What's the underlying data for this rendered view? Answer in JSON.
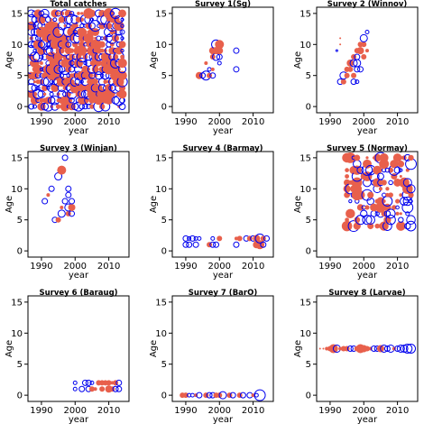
{
  "colors": {
    "positive": "#e8604c",
    "negative": "#0000ee",
    "axis": "#000000"
  },
  "chart_data": [
    {
      "type": "scatter",
      "title": "Total catches",
      "xlabel": "year",
      "ylabel": "Age",
      "xlim": [
        1986,
        2016
      ],
      "ylim": [
        -1,
        16
      ],
      "xticks": [
        1990,
        2000,
        2010
      ],
      "yticks": [
        0,
        5,
        10,
        15
      ],
      "x_range": [
        1987,
        2014
      ],
      "y_range": [
        0,
        15
      ],
      "mode": "dense",
      "density": 0.9
    },
    {
      "type": "scatter",
      "title": "Survey 1(Sg)",
      "xlabel": "year",
      "ylabel": "Age",
      "xlim": [
        1986,
        2016
      ],
      "ylim": [
        -1,
        16
      ],
      "xticks": [
        1990,
        2000,
        2010
      ],
      "yticks": [
        0,
        5,
        10,
        15
      ],
      "points": [
        {
          "x": 1994,
          "y": 5,
          "r": 4,
          "s": "pos"
        },
        {
          "x": 1995,
          "y": 5,
          "r": 3,
          "s": "neg"
        },
        {
          "x": 1996,
          "y": 5,
          "r": 5,
          "s": "neg"
        },
        {
          "x": 1997,
          "y": 5,
          "r": 3,
          "s": "pos"
        },
        {
          "x": 1996,
          "y": 7,
          "r": 2,
          "s": "pos"
        },
        {
          "x": 1997,
          "y": 6,
          "r": 2,
          "s": "neg"
        },
        {
          "x": 1998,
          "y": 5,
          "r": 3,
          "s": "neg"
        },
        {
          "x": 1998,
          "y": 8,
          "r": 3,
          "s": "pos"
        },
        {
          "x": 1998,
          "y": 9,
          "r": 4,
          "s": "pos"
        },
        {
          "x": 1999,
          "y": 10,
          "r": 5,
          "s": "neg"
        },
        {
          "x": 2000,
          "y": 10,
          "r": 5,
          "s": "pos"
        },
        {
          "x": 1999,
          "y": 8,
          "r": 4,
          "s": "neg"
        },
        {
          "x": 2000,
          "y": 8,
          "r": 3,
          "s": "neg"
        },
        {
          "x": 1999,
          "y": 9,
          "r": 4,
          "s": "pos"
        },
        {
          "x": 2000,
          "y": 9,
          "r": 4,
          "s": "pos"
        },
        {
          "x": 2000,
          "y": 7,
          "r": 2,
          "s": "neg"
        },
        {
          "x": 1998,
          "y": 6,
          "r": 2,
          "s": "pos"
        },
        {
          "x": 2005,
          "y": 9,
          "r": 3,
          "s": "neg"
        },
        {
          "x": 2005,
          "y": 6,
          "r": 3,
          "s": "neg"
        }
      ]
    },
    {
      "type": "scatter",
      "title": "Survey 2 (Winnov)",
      "xlabel": "year",
      "ylabel": "Age",
      "xlim": [
        1986,
        2016
      ],
      "ylim": [
        -1,
        16
      ],
      "xticks": [
        1990,
        2000,
        2010
      ],
      "yticks": [
        0,
        5,
        10,
        15
      ],
      "points": [
        {
          "x": 1992,
          "y": 9,
          "r": 1,
          "s": "neg"
        },
        {
          "x": 1993,
          "y": 10,
          "r": 1,
          "s": "pos"
        },
        {
          "x": 1993,
          "y": 11,
          "r": 1,
          "s": "pos"
        },
        {
          "x": 1993,
          "y": 4,
          "r": 3,
          "s": "neg"
        },
        {
          "x": 1994,
          "y": 4,
          "r": 3,
          "s": "pos"
        },
        {
          "x": 1994,
          "y": 5,
          "r": 4,
          "s": "neg"
        },
        {
          "x": 1995,
          "y": 5,
          "r": 3,
          "s": "pos"
        },
        {
          "x": 1995,
          "y": 6,
          "r": 3,
          "s": "pos"
        },
        {
          "x": 1996,
          "y": 6,
          "r": 3,
          "s": "pos"
        },
        {
          "x": 1996,
          "y": 7,
          "r": 4,
          "s": "pos"
        },
        {
          "x": 1997,
          "y": 4,
          "r": 3,
          "s": "neg"
        },
        {
          "x": 1997,
          "y": 5,
          "r": 3,
          "s": "pos"
        },
        {
          "x": 1997,
          "y": 7,
          "r": 4,
          "s": "neg"
        },
        {
          "x": 1997,
          "y": 8,
          "r": 3,
          "s": "pos"
        },
        {
          "x": 1998,
          "y": 6,
          "r": 3,
          "s": "neg"
        },
        {
          "x": 1998,
          "y": 7,
          "r": 4,
          "s": "neg"
        },
        {
          "x": 1998,
          "y": 8,
          "r": 3,
          "s": "neg"
        },
        {
          "x": 1998,
          "y": 9,
          "r": 3,
          "s": "pos"
        },
        {
          "x": 1999,
          "y": 9,
          "r": 4,
          "s": "pos"
        },
        {
          "x": 1999,
          "y": 10,
          "r": 3,
          "s": "pos"
        },
        {
          "x": 1999,
          "y": 6,
          "r": 3,
          "s": "neg"
        },
        {
          "x": 2000,
          "y": 10,
          "r": 3,
          "s": "pos"
        },
        {
          "x": 2000,
          "y": 8,
          "r": 3,
          "s": "pos"
        },
        {
          "x": 2000,
          "y": 11,
          "r": 4,
          "s": "neg"
        },
        {
          "x": 2001,
          "y": 12,
          "r": 2,
          "s": "neg"
        },
        {
          "x": 2001,
          "y": 9,
          "r": 2,
          "s": "pos"
        },
        {
          "x": 1998,
          "y": 4,
          "r": 2,
          "s": "neg"
        }
      ]
    },
    {
      "type": "scatter",
      "title": "Survey 3 (Winjan)",
      "xlabel": "year",
      "ylabel": "Age",
      "xlim": [
        1986,
        2016
      ],
      "ylim": [
        -1,
        16
      ],
      "xticks": [
        1990,
        2000,
        2010
      ],
      "yticks": [
        0,
        5,
        10,
        15
      ],
      "points": [
        {
          "x": 1991,
          "y": 8,
          "r": 3,
          "s": "neg"
        },
        {
          "x": 1992,
          "y": 9,
          "r": 2,
          "s": "pos"
        },
        {
          "x": 1993,
          "y": 10,
          "r": 3,
          "s": "neg"
        },
        {
          "x": 1994,
          "y": 5,
          "r": 3,
          "s": "neg"
        },
        {
          "x": 1995,
          "y": 5,
          "r": 3,
          "s": "pos"
        },
        {
          "x": 1995,
          "y": 12,
          "r": 4,
          "s": "neg"
        },
        {
          "x": 1996,
          "y": 13,
          "r": 5,
          "s": "pos"
        },
        {
          "x": 1996,
          "y": 6,
          "r": 4,
          "s": "neg"
        },
        {
          "x": 1996,
          "y": 7,
          "r": 2,
          "s": "pos"
        },
        {
          "x": 1997,
          "y": 8,
          "r": 3,
          "s": "neg"
        },
        {
          "x": 1997,
          "y": 15,
          "r": 3,
          "s": "neg"
        },
        {
          "x": 1998,
          "y": 6,
          "r": 3,
          "s": "pos"
        },
        {
          "x": 1998,
          "y": 7,
          "r": 4,
          "s": "neg"
        },
        {
          "x": 1998,
          "y": 9,
          "r": 3,
          "s": "neg"
        },
        {
          "x": 1998,
          "y": 10,
          "r": 3,
          "s": "neg"
        },
        {
          "x": 1999,
          "y": 6,
          "r": 3,
          "s": "neg"
        },
        {
          "x": 1999,
          "y": 7,
          "r": 4,
          "s": "pos"
        },
        {
          "x": 1999,
          "y": 8,
          "r": 3,
          "s": "neg"
        }
      ]
    },
    {
      "type": "scatter",
      "title": "Survey 4 (Barmay)",
      "xlabel": "year",
      "ylabel": "Age",
      "xlim": [
        1986,
        2016
      ],
      "ylim": [
        -1,
        16
      ],
      "xticks": [
        1990,
        2000,
        2010
      ],
      "yticks": [
        0,
        5,
        10,
        15
      ],
      "points": [
        {
          "x": 1990,
          "y": 1,
          "r": 3,
          "s": "neg"
        },
        {
          "x": 1990,
          "y": 2,
          "r": 3,
          "s": "neg"
        },
        {
          "x": 1991,
          "y": 1,
          "r": 3,
          "s": "neg"
        },
        {
          "x": 1991,
          "y": 2,
          "r": 2,
          "s": "neg"
        },
        {
          "x": 1992,
          "y": 2,
          "r": 3,
          "s": "neg"
        },
        {
          "x": 1993,
          "y": 1,
          "r": 3,
          "s": "neg"
        },
        {
          "x": 1993,
          "y": 2,
          "r": 2,
          "s": "neg"
        },
        {
          "x": 1994,
          "y": 2,
          "r": 2,
          "s": "neg"
        },
        {
          "x": 1997,
          "y": 1,
          "r": 3,
          "s": "pos"
        },
        {
          "x": 1998,
          "y": 1,
          "r": 3,
          "s": "neg"
        },
        {
          "x": 1998,
          "y": 2,
          "r": 2,
          "s": "neg"
        },
        {
          "x": 1999,
          "y": 1,
          "r": 3,
          "s": "neg"
        },
        {
          "x": 2000,
          "y": 2,
          "r": 3,
          "s": "pos"
        },
        {
          "x": 2005,
          "y": 1,
          "r": 3,
          "s": "neg"
        },
        {
          "x": 2005,
          "y": 2,
          "r": 2,
          "s": "pos"
        },
        {
          "x": 2006,
          "y": 2,
          "r": 3,
          "s": "pos"
        },
        {
          "x": 2008,
          "y": 2,
          "r": 3,
          "s": "neg"
        },
        {
          "x": 2009,
          "y": 2,
          "r": 3,
          "s": "pos"
        },
        {
          "x": 2010,
          "y": 2,
          "r": 3,
          "s": "neg"
        },
        {
          "x": 2011,
          "y": 1,
          "r": 4,
          "s": "pos"
        },
        {
          "x": 2011,
          "y": 2,
          "r": 4,
          "s": "pos"
        },
        {
          "x": 2012,
          "y": 1,
          "r": 5,
          "s": "pos"
        },
        {
          "x": 2012,
          "y": 2,
          "r": 5,
          "s": "neg"
        },
        {
          "x": 2013,
          "y": 1,
          "r": 3,
          "s": "neg"
        },
        {
          "x": 2013,
          "y": 2,
          "r": 3,
          "s": "pos"
        },
        {
          "x": 2014,
          "y": 2,
          "r": 3,
          "s": "neg"
        }
      ]
    },
    {
      "type": "scatter",
      "title": "Survey 5 (Normay)",
      "xlabel": "year",
      "ylabel": "Age",
      "xlim": [
        1986,
        2016
      ],
      "ylim": [
        -1,
        16
      ],
      "xticks": [
        1990,
        2000,
        2010
      ],
      "yticks": [
        0,
        5,
        10,
        15
      ],
      "x_range": [
        1995,
        2014
      ],
      "y_range": [
        4,
        15
      ],
      "mode": "dense",
      "density": 0.55
    },
    {
      "type": "scatter",
      "title": "Survey 6 (Baraug)",
      "xlabel": "year",
      "ylabel": "Age",
      "xlim": [
        1986,
        2016
      ],
      "ylim": [
        -1,
        16
      ],
      "xticks": [
        1990,
        2000,
        2010
      ],
      "yticks": [
        0,
        5,
        10,
        15
      ],
      "points": [
        {
          "x": 2000,
          "y": 1,
          "r": 2,
          "s": "neg"
        },
        {
          "x": 2000,
          "y": 2,
          "r": 2,
          "s": "neg"
        },
        {
          "x": 2002,
          "y": 1,
          "r": 3,
          "s": "neg"
        },
        {
          "x": 2003,
          "y": 2,
          "r": 3,
          "s": "neg"
        },
        {
          "x": 2004,
          "y": 1,
          "r": 3,
          "s": "neg"
        },
        {
          "x": 2004,
          "y": 2,
          "r": 3,
          "s": "neg"
        },
        {
          "x": 2005,
          "y": 1,
          "r": 3,
          "s": "pos"
        },
        {
          "x": 2005,
          "y": 2,
          "r": 2,
          "s": "neg"
        },
        {
          "x": 2006,
          "y": 1,
          "r": 2,
          "s": "pos"
        },
        {
          "x": 2007,
          "y": 2,
          "r": 3,
          "s": "pos"
        },
        {
          "x": 2008,
          "y": 1,
          "r": 3,
          "s": "pos"
        },
        {
          "x": 2008,
          "y": 2,
          "r": 3,
          "s": "pos"
        },
        {
          "x": 2009,
          "y": 2,
          "r": 3,
          "s": "pos"
        },
        {
          "x": 2010,
          "y": 1,
          "r": 4,
          "s": "pos"
        },
        {
          "x": 2010,
          "y": 2,
          "r": 3,
          "s": "pos"
        },
        {
          "x": 2011,
          "y": 1,
          "r": 3,
          "s": "pos"
        },
        {
          "x": 2011,
          "y": 2,
          "r": 2,
          "s": "pos"
        },
        {
          "x": 2012,
          "y": 1,
          "r": 3,
          "s": "neg"
        },
        {
          "x": 2012,
          "y": 2,
          "r": 3,
          "s": "pos"
        },
        {
          "x": 2013,
          "y": 1,
          "r": 3,
          "s": "neg"
        },
        {
          "x": 2013,
          "y": 2,
          "r": 3,
          "s": "neg"
        }
      ]
    },
    {
      "type": "scatter",
      "title": "Survey 7 (BarO)",
      "xlabel": "year",
      "ylabel": "Age",
      "xlim": [
        1986,
        2016
      ],
      "ylim": [
        -1,
        16
      ],
      "xticks": [
        1990,
        2000,
        2010
      ],
      "yticks": [
        0,
        5,
        10,
        15
      ],
      "points": [
        {
          "x": 1989,
          "y": 0,
          "r": 3,
          "s": "pos"
        },
        {
          "x": 1990,
          "y": 0,
          "r": 3,
          "s": "pos"
        },
        {
          "x": 1991,
          "y": 0,
          "r": 2,
          "s": "neg"
        },
        {
          "x": 1992,
          "y": 0,
          "r": 2,
          "s": "neg"
        },
        {
          "x": 1993,
          "y": 0,
          "r": 2,
          "s": "pos"
        },
        {
          "x": 1994,
          "y": 0,
          "r": 3,
          "s": "neg"
        },
        {
          "x": 1996,
          "y": 0,
          "r": 3,
          "s": "pos"
        },
        {
          "x": 1997,
          "y": 0,
          "r": 3,
          "s": "neg"
        },
        {
          "x": 1998,
          "y": 0,
          "r": 3,
          "s": "neg"
        },
        {
          "x": 1999,
          "y": 0,
          "r": 3,
          "s": "pos"
        },
        {
          "x": 2000,
          "y": 0,
          "r": 3,
          "s": "pos"
        },
        {
          "x": 2001,
          "y": 0,
          "r": 4,
          "s": "neg"
        },
        {
          "x": 2003,
          "y": 0,
          "r": 3,
          "s": "pos"
        },
        {
          "x": 2004,
          "y": 0,
          "r": 3,
          "s": "neg"
        },
        {
          "x": 2006,
          "y": 0,
          "r": 3,
          "s": "pos"
        },
        {
          "x": 2007,
          "y": 0,
          "r": 3,
          "s": "neg"
        },
        {
          "x": 2009,
          "y": 0,
          "r": 3,
          "s": "neg"
        },
        {
          "x": 2010,
          "y": 0,
          "r": 2,
          "s": "pos"
        },
        {
          "x": 2011,
          "y": 0,
          "r": 2,
          "s": "neg"
        },
        {
          "x": 2012,
          "y": 0,
          "r": 6,
          "s": "neg"
        }
      ]
    },
    {
      "type": "scatter",
      "title": "Survey 8 (Larvae)",
      "xlabel": "year",
      "ylabel": "Age",
      "xlim": [
        1986,
        2016
      ],
      "ylim": [
        -1,
        16
      ],
      "xticks": [
        1990,
        2000,
        2010
      ],
      "yticks": [
        0,
        5,
        10,
        15
      ],
      "points": [
        {
          "x": 1987,
          "y": 7.5,
          "r": 1,
          "s": "pos"
        },
        {
          "x": 1988,
          "y": 7.5,
          "r": 1,
          "s": "pos"
        },
        {
          "x": 1989,
          "y": 7.5,
          "r": 2,
          "s": "pos"
        },
        {
          "x": 1990,
          "y": 7.5,
          "r": 3,
          "s": "pos"
        },
        {
          "x": 1991,
          "y": 7.5,
          "r": 5,
          "s": "pos"
        },
        {
          "x": 1992,
          "y": 7.5,
          "r": 4,
          "s": "neg"
        },
        {
          "x": 1993,
          "y": 7.5,
          "r": 2,
          "s": "pos"
        },
        {
          "x": 1994,
          "y": 7.5,
          "r": 3,
          "s": "pos"
        },
        {
          "x": 1995,
          "y": 7.5,
          "r": 3,
          "s": "pos"
        },
        {
          "x": 1996,
          "y": 7.5,
          "r": 3,
          "s": "neg"
        },
        {
          "x": 1997,
          "y": 7.5,
          "r": 3,
          "s": "neg"
        },
        {
          "x": 1998,
          "y": 7.5,
          "r": 3,
          "s": "pos"
        },
        {
          "x": 1999,
          "y": 7.5,
          "r": 5,
          "s": "pos"
        },
        {
          "x": 2000,
          "y": 7.5,
          "r": 4,
          "s": "pos"
        },
        {
          "x": 2001,
          "y": 7.5,
          "r": 3,
          "s": "pos"
        },
        {
          "x": 2002,
          "y": 7.5,
          "r": 2,
          "s": "pos"
        },
        {
          "x": 2003,
          "y": 7.5,
          "r": 3,
          "s": "neg"
        },
        {
          "x": 2004,
          "y": 7.5,
          "r": 3,
          "s": "neg"
        },
        {
          "x": 2005,
          "y": 7.5,
          "r": 4,
          "s": "pos"
        },
        {
          "x": 2006,
          "y": 7.5,
          "r": 4,
          "s": "neg"
        },
        {
          "x": 2007,
          "y": 7.5,
          "r": 3,
          "s": "neg"
        },
        {
          "x": 2008,
          "y": 7.5,
          "r": 4,
          "s": "neg"
        },
        {
          "x": 2009,
          "y": 7.5,
          "r": 2,
          "s": "pos"
        },
        {
          "x": 2010,
          "y": 7.5,
          "r": 3,
          "s": "neg"
        },
        {
          "x": 2011,
          "y": 7.5,
          "r": 4,
          "s": "neg"
        },
        {
          "x": 2012,
          "y": 7.5,
          "r": 4,
          "s": "neg"
        },
        {
          "x": 2013,
          "y": 7.5,
          "r": 5,
          "s": "neg"
        },
        {
          "x": 2014,
          "y": 7.5,
          "r": 5,
          "s": "neg"
        }
      ]
    }
  ]
}
